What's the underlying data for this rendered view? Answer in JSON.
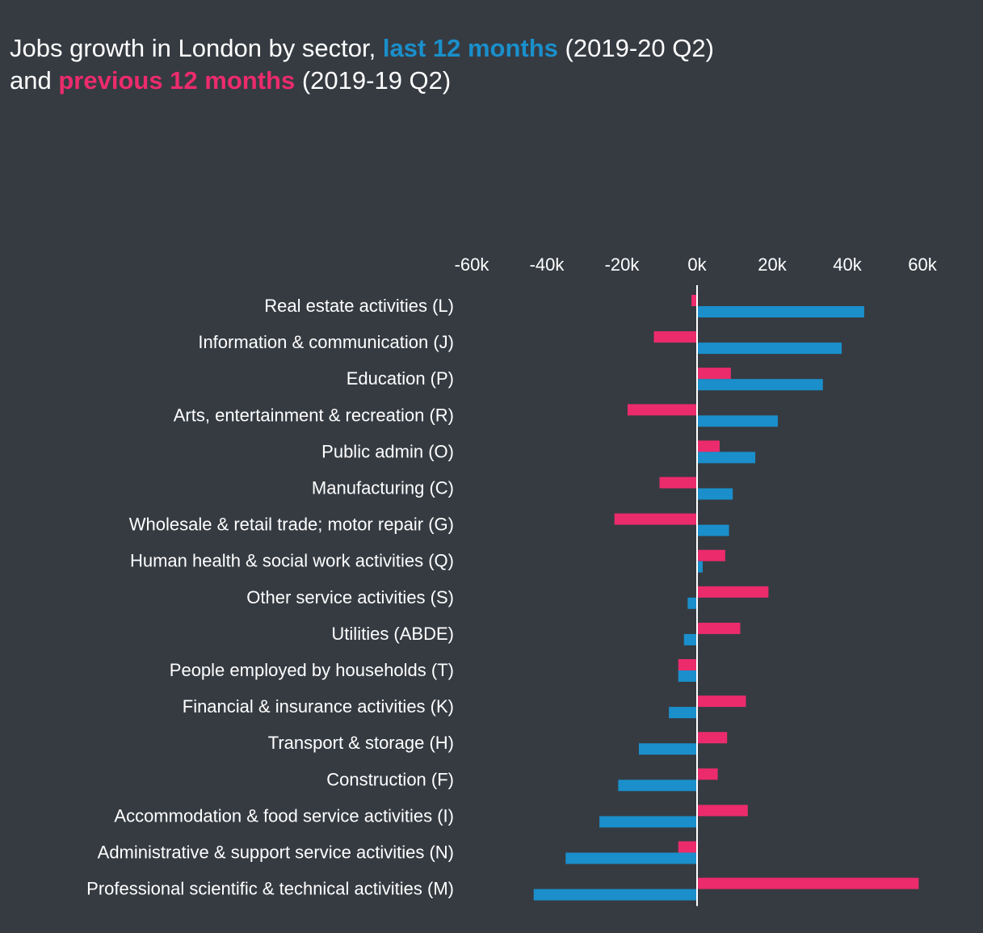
{
  "title": {
    "part1": "Jobs growth in London by sector,",
    "highlight1": "last 12 months",
    "part2": "(2019-20 Q2)",
    "part3": "and",
    "highlight2": "previous 12 months",
    "part4": "(2019-19 Q2)"
  },
  "colors": {
    "background": "#363b42",
    "last_12_months": "#1a8fcb",
    "previous_12_months": "#ec2b6c",
    "text": "#ffffff",
    "zero_line": "#ffffff"
  },
  "chart_data": {
    "type": "bar",
    "orientation": "horizontal",
    "title": "Jobs growth in London by sector, last 12 months (2019-20 Q2) and previous 12 months (2019-19 Q2)",
    "xlim": [
      -60000,
      60000
    ],
    "x_ticks": [
      -60000,
      -40000,
      -20000,
      0,
      20000,
      40000,
      60000
    ],
    "x_tick_labels": [
      "-60k",
      "-40k",
      "-20k",
      "0k",
      "20k",
      "40k",
      "60k"
    ],
    "x_axis_position": "top",
    "grid": false,
    "categories": [
      "Real estate activities (L)",
      "Information & communication (J)",
      "Education (P)",
      "Arts, entertainment & recreation (R)",
      "Public admin (O)",
      "Manufacturing (C)",
      "Wholesale & retail trade; motor repair (G)",
      "Human health & social work activities (Q)",
      "Other service activities (S)",
      "Utilities (ABDE)",
      "People employed by households (T)",
      "Financial & insurance activities (K)",
      "Transport & storage (H)",
      "Construction (F)",
      "Accommodation & food service activities (I)",
      "Administrative & support service activities (N)",
      "Professional scientific & technical activities (M)"
    ],
    "series": [
      {
        "name": "previous 12 months",
        "values": [
          -1500,
          -11500,
          9000,
          -18500,
          6000,
          -10000,
          -22000,
          7500,
          19000,
          11500,
          -5000,
          13000,
          8000,
          5500,
          13500,
          -5000,
          59000
        ]
      },
      {
        "name": "last 12 months",
        "values": [
          44500,
          38500,
          33500,
          21500,
          15500,
          9500,
          8500,
          1500,
          -2500,
          -3500,
          -5000,
          -7500,
          -15500,
          -21000,
          -26000,
          -35000,
          -43500
        ]
      }
    ]
  }
}
